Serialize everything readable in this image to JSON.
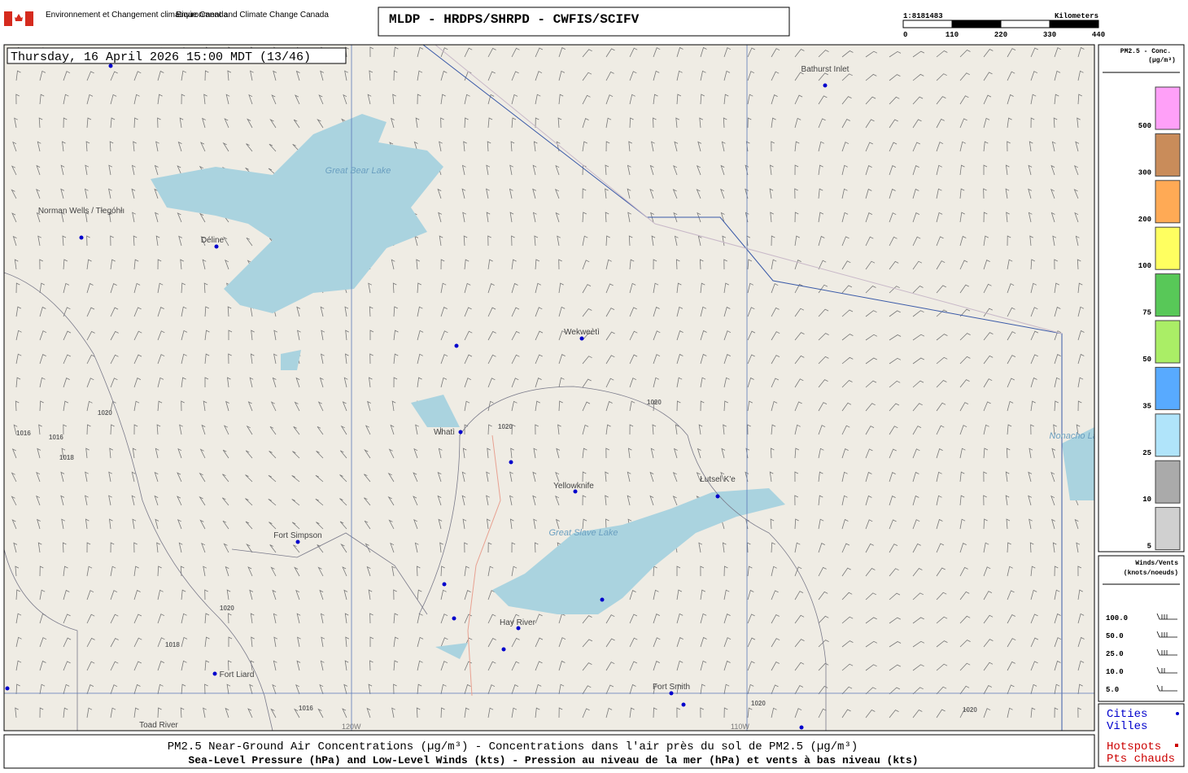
{
  "header": {
    "agency_fr": "Environnement et Changement climatique Canada",
    "agency_en": "Environment and Climate Change Canada",
    "title": "MLDP - HRDPS/SHRPD - CWFIS/SCIFV",
    "scale": {
      "ratio": "1:8181483",
      "unit": "Kilometers",
      "ticks": [
        0,
        110,
        220,
        330,
        440
      ]
    }
  },
  "map": {
    "timestamp": "Thursday, 16 April 2026 15:00 MDT (13/46)",
    "places": [
      "Bathurst Inlet",
      "Norman Wells / Tłegóhłı",
      "Déline",
      "Great Bear Lake",
      "Wekweètì",
      "Whatì",
      "Yellowknife",
      "Łutsel K'e",
      "Great Slave Lake",
      "Fort Simpson",
      "Hay River",
      "Fort Liard",
      "Fort Smith",
      "Toad River",
      "Nonacho Lake"
    ],
    "isobars": [
      "1020",
      "1016",
      "1016",
      "1018",
      "1020",
      "1020",
      "1020",
      "1016",
      "1018",
      "1020",
      "1020"
    ],
    "meridians": [
      "120W",
      "110W"
    ]
  },
  "legend": {
    "pm_title": "PM2.5 - Conc.",
    "pm_unit": "(µg/m³)",
    "pm_levels": [
      {
        "value": 500,
        "color": "#ffa0f8"
      },
      {
        "value": 300,
        "color": "#c98c5a"
      },
      {
        "value": 200,
        "color": "#ffaa55"
      },
      {
        "value": 100,
        "color": "#ffff60"
      },
      {
        "value": 75,
        "color": "#58c858"
      },
      {
        "value": 50,
        "color": "#aaee66"
      },
      {
        "value": 35,
        "color": "#58aaff"
      },
      {
        "value": 25,
        "color": "#b0e4fa"
      },
      {
        "value": 10,
        "color": "#aaaaaa"
      },
      {
        "value": 5,
        "color": "#d0d0d0"
      }
    ],
    "wind_title": "Winds/Vents",
    "wind_unit": "(knots/noeuds)",
    "wind_levels": [
      {
        "value": 100,
        "label": "100.0"
      },
      {
        "value": 50,
        "label": "50.0"
      },
      {
        "value": 25,
        "label": "25.0"
      },
      {
        "value": 10,
        "label": "10.0"
      },
      {
        "value": 5,
        "label": "5.0"
      }
    ],
    "cities_en": "Cities",
    "cities_fr": "Villes",
    "hotspots_en": "Hotspots",
    "hotspots_fr": "Pts chauds"
  },
  "footer": {
    "line1": "PM2.5 Near-Ground Air Concentrations (µg/m³) - Concentrations dans l'air près du sol de PM2.5 (µg/m³)",
    "line2": "Sea-Level Pressure (hPa) and Low-Level Winds (kts) - Pression au niveau de la mer (hPa) et vents à bas niveau (kts)"
  }
}
